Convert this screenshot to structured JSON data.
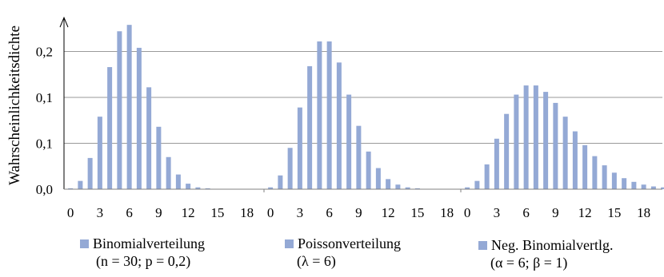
{
  "chart_data": {
    "type": "bar",
    "ylabel": "Wahrscheinlichkeitsdichte",
    "y_tick_labels": [
      "0,0",
      "0,1",
      "0,1",
      "0,2"
    ],
    "y_tick_values": [
      0.0,
      0.05,
      0.1,
      0.15
    ],
    "ylim": [
      0,
      0.18
    ],
    "grid": true,
    "bar_color": "#94a9d5",
    "x_tick_labels": [
      "0",
      "3",
      "6",
      "9",
      "12",
      "15",
      "18"
    ],
    "x_tick_values": [
      0,
      3,
      6,
      9,
      12,
      15,
      18
    ],
    "panels": [
      {
        "legend_line1": "Binomialverteilung",
        "legend_line2": "(n = 30; p = 0,2)",
        "x": [
          0,
          1,
          2,
          3,
          4,
          5,
          6,
          7,
          8,
          9,
          10,
          11,
          12,
          13,
          14,
          15,
          16,
          17,
          18,
          19,
          20
        ],
        "values": [
          0.001,
          0.009,
          0.034,
          0.079,
          0.133,
          0.172,
          0.179,
          0.154,
          0.111,
          0.068,
          0.035,
          0.016,
          0.006,
          0.002,
          0.001,
          0,
          0,
          0,
          0,
          0,
          0
        ]
      },
      {
        "legend_line1": "Poissonverteilung",
        "legend_line2": "(λ = 6)",
        "x": [
          0,
          1,
          2,
          3,
          4,
          5,
          6,
          7,
          8,
          9,
          10,
          11,
          12,
          13,
          14,
          15,
          16,
          17,
          18,
          19,
          20
        ],
        "values": [
          0.002,
          0.015,
          0.045,
          0.089,
          0.134,
          0.161,
          0.161,
          0.138,
          0.103,
          0.069,
          0.041,
          0.023,
          0.011,
          0.005,
          0.002,
          0.001,
          0,
          0,
          0,
          0,
          0
        ]
      },
      {
        "legend_line1": "Neg. Binomialvertlg.",
        "legend_line2": "(α = 6; β = 1)",
        "x": [
          0,
          1,
          2,
          3,
          4,
          5,
          6,
          7,
          8,
          9,
          10,
          11,
          12,
          13,
          14,
          15,
          16,
          17,
          18,
          19,
          20
        ],
        "values": [
          0.002,
          0.009,
          0.027,
          0.055,
          0.082,
          0.103,
          0.113,
          0.113,
          0.106,
          0.094,
          0.079,
          0.063,
          0.048,
          0.036,
          0.026,
          0.018,
          0.012,
          0.008,
          0.005,
          0.003,
          0.002
        ]
      }
    ]
  }
}
